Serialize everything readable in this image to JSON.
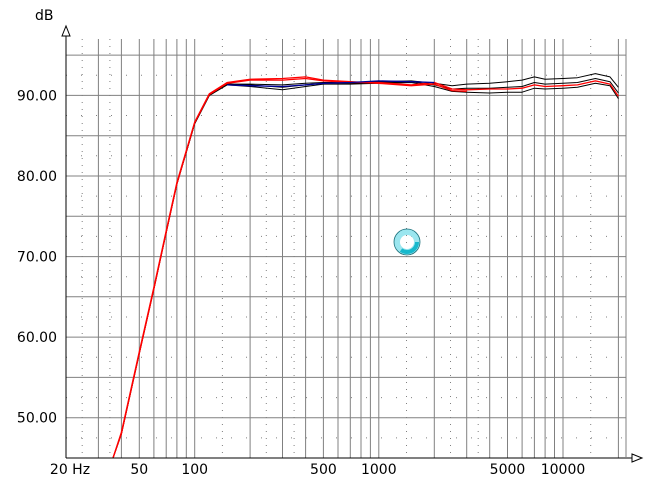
{
  "chart_data": {
    "type": "line",
    "ylabel": "dB",
    "x_scale": "log",
    "xlim": [
      20,
      22000
    ],
    "ylim": [
      45,
      97
    ],
    "x_ticks": [
      {
        "value": 20,
        "label": "20 Hz"
      },
      {
        "value": 50,
        "label": "50"
      },
      {
        "value": 100,
        "label": "100"
      },
      {
        "value": 500,
        "label": "500"
      },
      {
        "value": 1000,
        "label": "1000"
      },
      {
        "value": 5000,
        "label": "5000"
      },
      {
        "value": 10000,
        "label": "10000"
      }
    ],
    "y_ticks": [
      {
        "value": 50,
        "label": "50.00"
      },
      {
        "value": 60,
        "label": "60.00"
      },
      {
        "value": 70,
        "label": "70.00"
      },
      {
        "value": 80,
        "label": "80.00"
      },
      {
        "value": 90,
        "label": "90.00"
      }
    ],
    "grid": true,
    "colors": {
      "black": "#000000",
      "red": "#ff0000",
      "blue": "#000099",
      "grid": "#808080",
      "spinner": "#17b8cc"
    },
    "series": [
      {
        "color": "black",
        "x": [
          36,
          40,
          50,
          60,
          70,
          80,
          100,
          120,
          150,
          200,
          300,
          400,
          500,
          700,
          1000,
          1500,
          2000,
          2500,
          3000,
          4000,
          5000,
          6000,
          7000,
          8000,
          10000,
          12000,
          15000,
          18000,
          20000
        ],
        "y": [
          45,
          48,
          58,
          66,
          73,
          79,
          86.5,
          90,
          91.4,
          91.4,
          91.3,
          91.5,
          91.6,
          91.6,
          91.7,
          91.8,
          91.5,
          91.2,
          91.4,
          91.5,
          91.7,
          91.9,
          92.3,
          92.0,
          92.1,
          92.2,
          92.7,
          92.3,
          91.0
        ]
      },
      {
        "color": "black",
        "x": [
          36,
          40,
          50,
          60,
          70,
          80,
          100,
          120,
          150,
          200,
          300,
          400,
          500,
          700,
          1000,
          1500,
          2000,
          2500,
          3000,
          4000,
          5000,
          6000,
          7000,
          8000,
          10000,
          12000,
          15000,
          18000,
          20000
        ],
        "y": [
          45,
          48,
          58,
          66,
          73,
          79,
          86.5,
          90,
          91.4,
          91.3,
          91.0,
          91.3,
          91.5,
          91.5,
          91.6,
          91.7,
          91.3,
          90.8,
          90.9,
          90.9,
          91.0,
          91.1,
          91.6,
          91.4,
          91.5,
          91.6,
          92.1,
          91.7,
          90.3
        ]
      },
      {
        "color": "black",
        "x": [
          36,
          40,
          50,
          60,
          70,
          80,
          100,
          120,
          150,
          200,
          300,
          400,
          500,
          700,
          1000,
          1500,
          2000,
          2500,
          3000,
          4000,
          5000,
          6000,
          7000,
          8000,
          10000,
          12000,
          15000,
          18000,
          20000
        ],
        "y": [
          45,
          48,
          58,
          66,
          73,
          79,
          86.5,
          90,
          91.3,
          91.1,
          90.7,
          91.1,
          91.4,
          91.4,
          91.5,
          91.6,
          91.1,
          90.5,
          90.4,
          90.3,
          90.4,
          90.4,
          90.9,
          90.8,
          90.9,
          91.0,
          91.5,
          91.2,
          89.6
        ]
      },
      {
        "color": "red",
        "x": [
          36,
          40,
          50,
          60,
          70,
          80,
          100,
          120,
          150,
          200,
          300,
          400,
          500,
          700,
          1000,
          1500,
          2000,
          2500,
          3000,
          4000,
          5000,
          6000,
          7000,
          8000,
          10000,
          12000,
          15000,
          18000,
          20000
        ],
        "y": [
          45,
          48,
          58,
          66,
          73,
          79,
          86.6,
          90.1,
          91.5,
          91.9,
          91.9,
          92.1,
          91.8,
          91.6,
          91.6,
          91.3,
          91.6,
          90.8,
          90.7,
          90.8,
          90.8,
          90.9,
          91.3,
          91.1,
          91.2,
          91.3,
          91.8,
          91.4,
          89.9
        ]
      },
      {
        "color": "red",
        "x": [
          36,
          40,
          50,
          60,
          70,
          80,
          100,
          120,
          150,
          200,
          300,
          400,
          500,
          700,
          1000,
          1500,
          2000,
          2500,
          3000
        ],
        "y": [
          45,
          48.2,
          58.2,
          66.2,
          73.2,
          79.2,
          86.7,
          90.2,
          91.6,
          92.0,
          92.1,
          92.3,
          91.9,
          91.7,
          91.5,
          91.2,
          91.4,
          90.6,
          90.5
        ]
      },
      {
        "color": "blue",
        "x": [
          150,
          200,
          300,
          400,
          500,
          700,
          1000,
          1500,
          2000
        ],
        "y": [
          91.3,
          91.2,
          91.1,
          91.3,
          91.5,
          91.6,
          91.8,
          91.7,
          91.6
        ]
      }
    ]
  }
}
